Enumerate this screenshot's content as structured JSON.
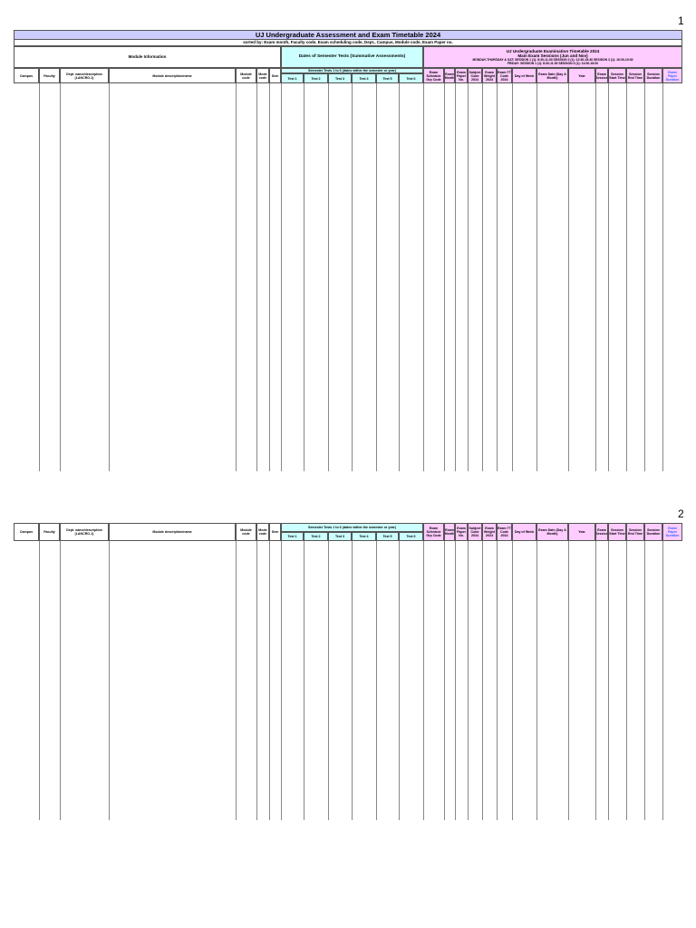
{
  "pages": [
    {
      "number": "1",
      "title": "UJ Undergraduate Assessment and Exam Timetable 2024",
      "subtitle": "sorted by: Exam month, Faculty code, Exam scheduling code, Dept., Campus, Module code, Exam Paper no.",
      "module_section": "Module Information",
      "tests_section": "Dates of Semester Tests (Summative Assessments)",
      "exam_section": [
        "UJ Undergraduate Examination Timetable 2024",
        "Main Exam Sessions (Jun and Nov)",
        "MONDAY-THURSDAY & SAT: SESSION 1 (1): 8:30-11:30  SESSION 2 (1): 12:30-15:30  SESSION 3 (1): 16:30-19:30",
        "FRIDAY: SESSION 1 (1): 8:30-11:30  SESSION 3 (1): 14:00-16:00"
      ]
    },
    {
      "number": "2"
    }
  ],
  "tests_span": "Semester Tests 1 to 6 (dates within the semester or year)",
  "columns": [
    "Campus",
    "Faculty",
    "Dept. name/description (LANCRO-1)",
    "Module description/name",
    "Module code",
    "Mode code",
    "Sem",
    "Test 1",
    "Test 2",
    "Test 3",
    "Test 4",
    "Test 5",
    "Test 6",
    "Exam Schedule Grp Code",
    "Exam Month",
    "Exam Paper No.",
    "Subject Code 2024",
    "Exam Weight 2024",
    "Exam TT Code 2024",
    "Day of Week",
    "Exam Date (Day & Month)",
    "Year",
    "Exam Session",
    "Session Start Time",
    "Session End Time",
    "Session Duration",
    "Exam Paper Duration"
  ]
}
